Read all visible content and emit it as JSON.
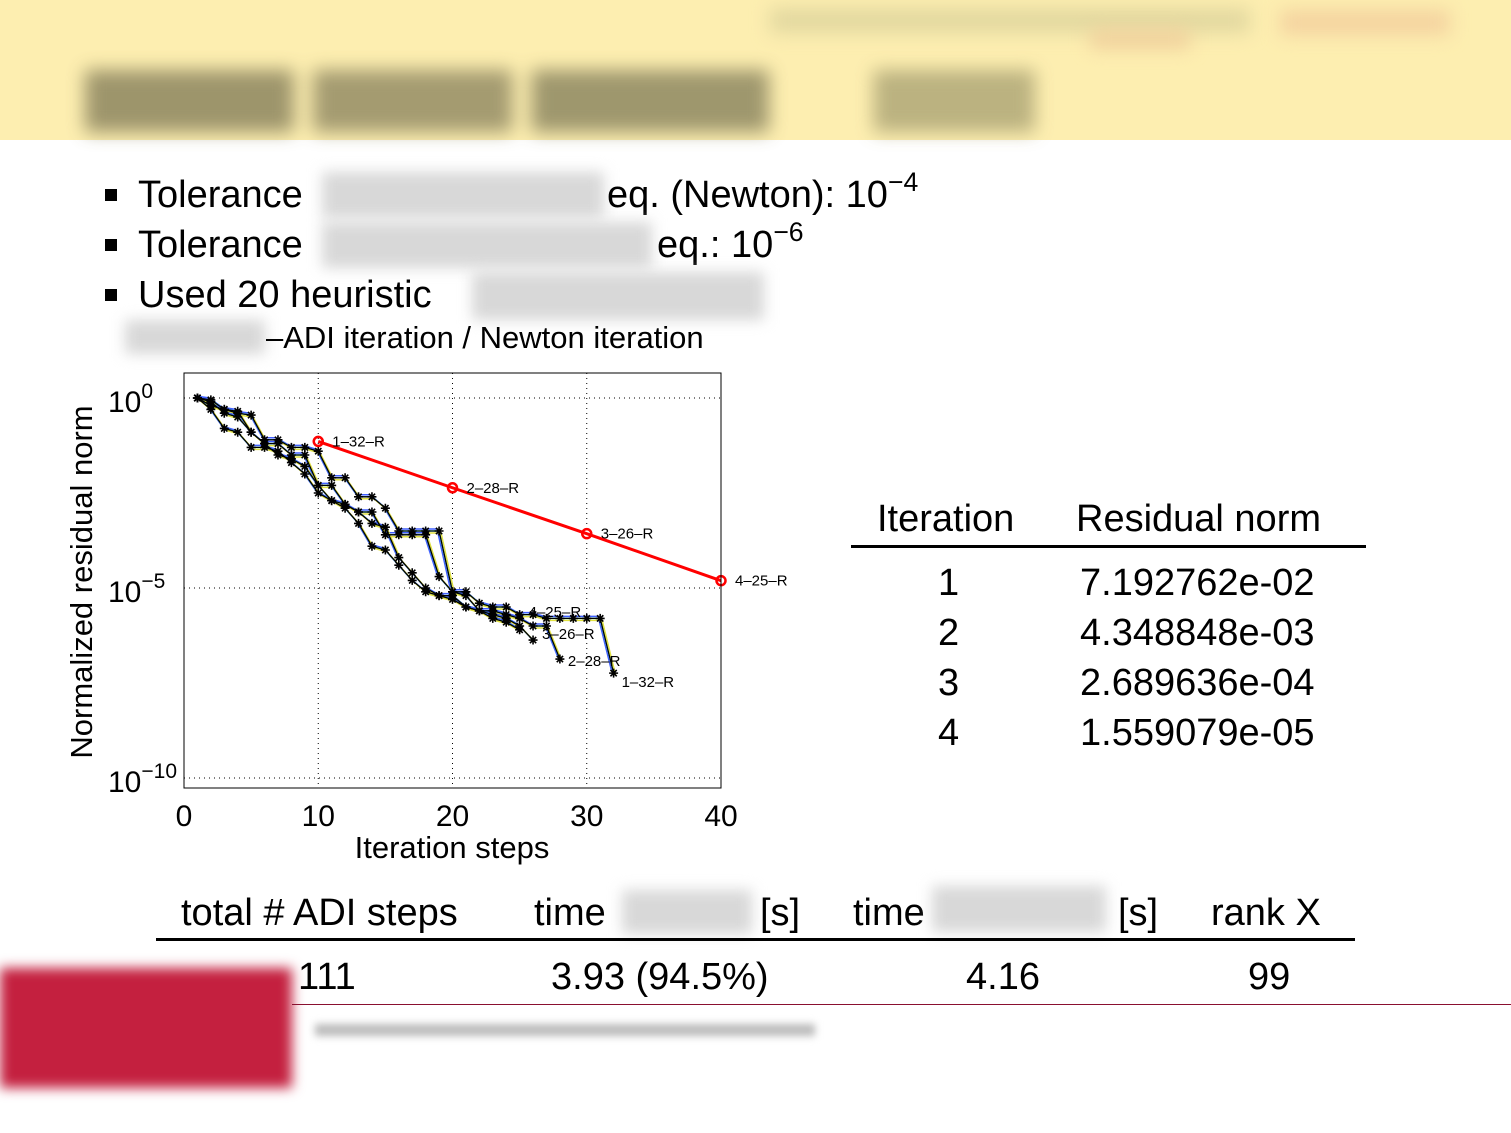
{
  "bullets": [
    {
      "pre": "Tolerance",
      "post": "eq. (Newton): 10",
      "exp": "−4"
    },
    {
      "pre": "Tolerance",
      "post": "eq.: 10",
      "exp": "−6"
    },
    {
      "pre": "Used 20 heuristic",
      "post": "",
      "exp": ""
    }
  ],
  "bullet_continuation": "–ADI iteration / Newton iteration",
  "chart_data": {
    "type": "line",
    "xlabel": "Iteration steps",
    "ylabel": "Normalized residual norm",
    "xlim": [
      0,
      40
    ],
    "ylim_log10": [
      -10.5,
      0.7
    ],
    "yscale": "log",
    "xticks": [
      "0",
      "10",
      "20",
      "30",
      "40"
    ],
    "yticks": [
      {
        "base": "10",
        "exp": "0"
      },
      {
        "base": "10",
        "exp": "−5"
      },
      {
        "base": "10",
        "exp": "−10"
      }
    ],
    "grid": true,
    "newton_series": {
      "color": "#ff0000",
      "x": [
        10,
        20,
        30,
        40
      ],
      "log10_y": [
        -1.143,
        -2.362,
        -3.57,
        -4.807
      ],
      "labels": [
        "1–32–R",
        "2–28–R",
        "3–26–R",
        "4–25–R"
      ]
    },
    "adi_series": [
      {
        "label": "1–32–R",
        "log10_y": [
          0,
          -0.05,
          -0.3,
          -0.4,
          -0.45,
          -1.1,
          -1.1,
          -1.3,
          -1.3,
          -1.4,
          -2.1,
          -2.1,
          -2.6,
          -2.6,
          -2.9,
          -3.5,
          -3.5,
          -3.5,
          -3.5,
          -5.1,
          -5.1,
          -5.4,
          -5.5,
          -5.5,
          -5.7,
          -5.7,
          -5.8,
          -5.8,
          -5.8,
          -5.8,
          -5.8,
          -7.24
        ]
      },
      {
        "label": "2–28–R",
        "log10_y": [
          0,
          -0.2,
          -0.3,
          -0.35,
          -0.9,
          -1.2,
          -1.2,
          -1.5,
          -1.5,
          -2.3,
          -2.3,
          -2.8,
          -3.0,
          -3.0,
          -3.6,
          -3.6,
          -3.6,
          -3.6,
          -4.7,
          -5.1,
          -5.2,
          -5.6,
          -5.6,
          -5.7,
          -5.8,
          -6.0,
          -6.0,
          -6.87
        ]
      },
      {
        "label": "3–26–R",
        "log10_y": [
          0,
          -0.3,
          -0.8,
          -0.9,
          -1.3,
          -1.3,
          -1.4,
          -1.7,
          -2.0,
          -2.5,
          -2.7,
          -2.9,
          -3.3,
          -3.9,
          -4.0,
          -4.4,
          -4.8,
          -5.1,
          -5.2,
          -5.2,
          -5.5,
          -5.6,
          -5.7,
          -5.8,
          -6.0,
          -6.37
        ]
      },
      {
        "label": "4–25–R",
        "log10_y": [
          0,
          -0.1,
          -0.4,
          -0.5,
          -0.9,
          -1.2,
          -1.5,
          -1.6,
          -1.8,
          -2.3,
          -2.7,
          -2.8,
          -3.0,
          -3.3,
          -3.4,
          -4.2,
          -4.6,
          -5.0,
          -5.2,
          -5.3,
          -5.5,
          -5.6,
          -5.8,
          -5.9,
          -6.1
        ]
      }
    ],
    "adi_color": "#000000",
    "shadow_colors": [
      "#4060ff",
      "#40e0e0",
      "#e0e040"
    ]
  },
  "residual_table": {
    "headers": [
      "Iteration",
      "Residual norm"
    ],
    "rows": [
      [
        "1",
        "7.192762e-02"
      ],
      [
        "2",
        "4.348848e-03"
      ],
      [
        "3",
        "2.689636e-04"
      ],
      [
        "4",
        "1.559079e-05"
      ]
    ]
  },
  "summary_table": {
    "headers": [
      "total # ADI steps",
      "time",
      "[s]",
      "time",
      "[s]",
      "rank X"
    ],
    "values": [
      "111",
      "3.93 (94.5%)",
      "4.16",
      "99"
    ]
  }
}
